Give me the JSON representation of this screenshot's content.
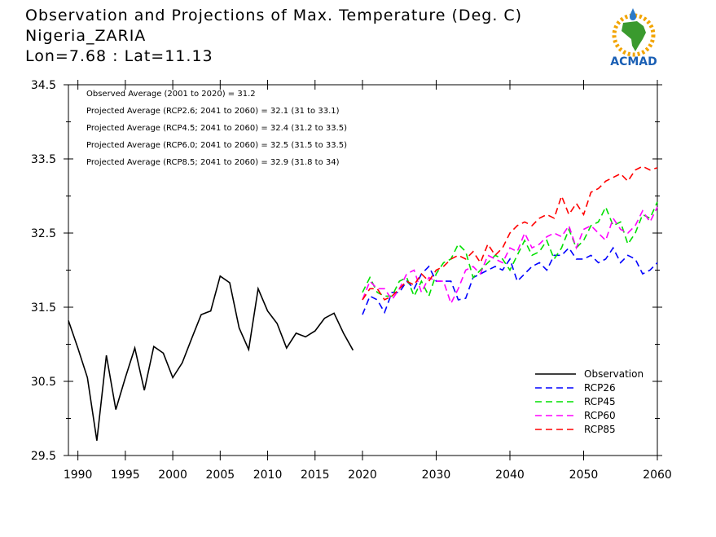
{
  "header": {
    "title": "Observation and Projections of Max. Temperature (Deg. C)",
    "location": "Nigeria_ZARIA",
    "coords": "Lon=7.68 : Lat=11.13"
  },
  "logo": {
    "text": "ACMAD",
    "icon": "africa-map-logo-icon"
  },
  "annotations": [
    "Observed Average (2001 to 2020) = 31.2",
    "Projected Average (RCP2.6; 2041 to 2060) = 32.1 (31 to 33.1)",
    "Projected Average (RCP4.5; 2041 to 2060) = 32.4 (31.2 to 33.5)",
    "Projected Average (RCP6.0; 2041 to 2060) = 32.5 (31.5 to 33.5)",
    "Projected Average (RCP8.5; 2041 to 2060) = 32.9 (31.8 to 34)"
  ],
  "chart_data": {
    "type": "line",
    "xlim": [
      1989,
      2060
    ],
    "ylim": [
      29.5,
      34.5
    ],
    "x_ticks": [
      1990,
      1995,
      2000,
      2005,
      2010,
      2015,
      2020,
      2030,
      2040,
      2050,
      2060
    ],
    "y_ticks": [
      29.5,
      30.5,
      31.5,
      32.5,
      33.5,
      34.5
    ],
    "y_tick_labels": [
      "29.5",
      "30.5",
      "31.5",
      "32.5",
      "33.5",
      "34.5"
    ],
    "legend_position": "bottom-right",
    "series": [
      {
        "name": "Observation",
        "color": "#000000",
        "dashed": false,
        "x": [
          1989,
          1990,
          1991,
          1992,
          1993,
          1994,
          1995,
          1996,
          1997,
          1998,
          1999,
          2000,
          2001,
          2002,
          2003,
          2004,
          2005,
          2006,
          2007,
          2008,
          2009,
          2010,
          2011,
          2012,
          2013,
          2014,
          2015,
          2016,
          2017,
          2018,
          2019
        ],
        "y": [
          31.32,
          30.95,
          30.55,
          29.7,
          30.85,
          30.12,
          30.55,
          30.95,
          30.38,
          30.97,
          30.88,
          30.55,
          30.75,
          31.08,
          31.4,
          31.45,
          31.92,
          31.83,
          31.22,
          30.93,
          31.75,
          31.45,
          31.28,
          30.95,
          31.15,
          31.1,
          31.18,
          31.35,
          31.42,
          31.15,
          30.92
        ]
      },
      {
        "name": "RCP26",
        "color": "#0000ff",
        "dashed": true,
        "x": [
          2020,
          2021,
          2022,
          2023,
          2024,
          2025,
          2026,
          2027,
          2028,
          2029,
          2030,
          2031,
          2032,
          2033,
          2034,
          2035,
          2036,
          2037,
          2038,
          2039,
          2040,
          2041,
          2042,
          2043,
          2044,
          2045,
          2046,
          2047,
          2048,
          2049,
          2050,
          2051,
          2052,
          2053,
          2054,
          2055,
          2056,
          2057,
          2058,
          2059,
          2060
        ],
        "y": [
          31.4,
          31.65,
          31.6,
          31.43,
          31.7,
          31.7,
          31.85,
          31.75,
          31.95,
          32.05,
          31.85,
          31.85,
          31.85,
          31.6,
          31.62,
          31.9,
          31.95,
          32.0,
          32.05,
          32.0,
          32.15,
          31.85,
          31.95,
          32.05,
          32.1,
          32.0,
          32.2,
          32.2,
          32.3,
          32.15,
          32.15,
          32.2,
          32.1,
          32.15,
          32.3,
          32.1,
          32.2,
          32.15,
          31.95,
          32.0,
          32.1
        ]
      },
      {
        "name": "RCP45",
        "color": "#00e000",
        "dashed": true,
        "x": [
          2020,
          2021,
          2022,
          2023,
          2024,
          2025,
          2026,
          2027,
          2028,
          2029,
          2030,
          2031,
          2032,
          2033,
          2034,
          2035,
          2036,
          2037,
          2038,
          2039,
          2040,
          2041,
          2042,
          2043,
          2044,
          2045,
          2046,
          2047,
          2048,
          2049,
          2050,
          2051,
          2052,
          2053,
          2054,
          2055,
          2056,
          2057,
          2058,
          2059,
          2060
        ],
        "y": [
          31.7,
          31.9,
          31.7,
          31.65,
          31.65,
          31.85,
          31.9,
          31.65,
          31.85,
          31.65,
          31.95,
          32.1,
          32.15,
          32.35,
          32.25,
          31.9,
          32.0,
          32.1,
          32.2,
          32.15,
          32.0,
          32.2,
          32.4,
          32.2,
          32.25,
          32.4,
          32.15,
          32.3,
          32.55,
          32.3,
          32.4,
          32.6,
          32.65,
          32.85,
          32.6,
          32.65,
          32.35,
          32.5,
          32.75,
          32.7,
          32.92
        ]
      },
      {
        "name": "RCP60",
        "color": "#ff00ff",
        "dashed": true,
        "x": [
          2020,
          2021,
          2022,
          2023,
          2024,
          2025,
          2026,
          2027,
          2028,
          2029,
          2030,
          2031,
          2032,
          2033,
          2034,
          2035,
          2036,
          2037,
          2038,
          2039,
          2040,
          2041,
          2042,
          2043,
          2044,
          2045,
          2046,
          2047,
          2048,
          2049,
          2050,
          2051,
          2052,
          2053,
          2054,
          2055,
          2056,
          2057,
          2058,
          2059,
          2060
        ],
        "y": [
          31.6,
          31.85,
          31.75,
          31.75,
          31.6,
          31.75,
          31.95,
          32.0,
          31.7,
          31.9,
          31.85,
          31.85,
          31.55,
          31.75,
          32.0,
          32.05,
          31.95,
          32.2,
          32.15,
          32.1,
          32.3,
          32.25,
          32.5,
          32.3,
          32.35,
          32.45,
          32.5,
          32.45,
          32.6,
          32.3,
          32.55,
          32.6,
          32.5,
          32.4,
          32.7,
          32.55,
          32.5,
          32.6,
          32.8,
          32.65,
          32.85
        ]
      },
      {
        "name": "RCP85",
        "color": "#ff0000",
        "dashed": true,
        "x": [
          2020,
          2021,
          2022,
          2023,
          2024,
          2025,
          2026,
          2027,
          2028,
          2029,
          2030,
          2031,
          2032,
          2033,
          2034,
          2035,
          2036,
          2037,
          2038,
          2039,
          2040,
          2041,
          2042,
          2043,
          2044,
          2045,
          2046,
          2047,
          2048,
          2049,
          2050,
          2051,
          2052,
          2053,
          2054,
          2055,
          2056,
          2057,
          2058,
          2059,
          2060
        ],
        "y": [
          31.6,
          31.75,
          31.75,
          31.6,
          31.65,
          31.75,
          31.85,
          31.8,
          31.95,
          31.85,
          32.0,
          32.05,
          32.15,
          32.2,
          32.15,
          32.25,
          32.1,
          32.35,
          32.2,
          32.3,
          32.5,
          32.6,
          32.65,
          32.6,
          32.7,
          32.75,
          32.7,
          33.0,
          32.75,
          32.9,
          32.75,
          33.05,
          33.1,
          33.2,
          33.25,
          33.3,
          33.2,
          33.35,
          33.4,
          33.35,
          33.38
        ]
      }
    ]
  }
}
